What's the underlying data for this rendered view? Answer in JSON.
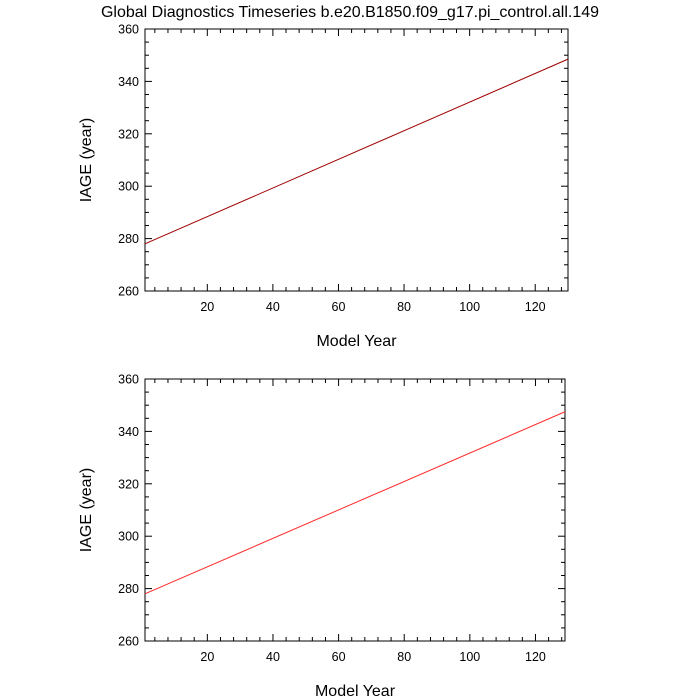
{
  "title": "Global Diagnostics Timeseries b.e20.B1850.f09_g17.pi_control.all.149",
  "chart_data": [
    {
      "type": "line",
      "xlabel": "Model Year",
      "ylabel": "IAGE (year)",
      "xlim": [
        1,
        130
      ],
      "ylim": [
        260,
        360
      ],
      "x_major_ticks": [
        20,
        40,
        60,
        80,
        100,
        120
      ],
      "x_tick_labels": [
        "20",
        "40",
        "60",
        "80",
        "100",
        "120"
      ],
      "y_major_ticks": [
        260,
        280,
        300,
        320,
        340,
        360
      ],
      "y_tick_labels": [
        "260",
        "280",
        "300",
        "320",
        "340",
        "360"
      ],
      "grid": false,
      "series": [
        {
          "color": "#a00000",
          "x": [
            1,
            130
          ],
          "y": [
            278,
            348.5
          ]
        }
      ]
    },
    {
      "type": "line",
      "xlabel": "Model Year",
      "ylabel": "IAGE (year)",
      "xlim": [
        1,
        129
      ],
      "ylim": [
        260,
        360
      ],
      "x_major_ticks": [
        20,
        40,
        60,
        80,
        100,
        120
      ],
      "x_tick_labels": [
        "20",
        "40",
        "60",
        "80",
        "100",
        "120"
      ],
      "y_major_ticks": [
        260,
        280,
        300,
        320,
        340,
        360
      ],
      "y_tick_labels": [
        "260",
        "280",
        "300",
        "320",
        "340",
        "360"
      ],
      "grid": false,
      "series": [
        {
          "color": "#ff2a2a",
          "x": [
            1,
            129
          ],
          "y": [
            278,
            347.5
          ]
        }
      ]
    }
  ]
}
